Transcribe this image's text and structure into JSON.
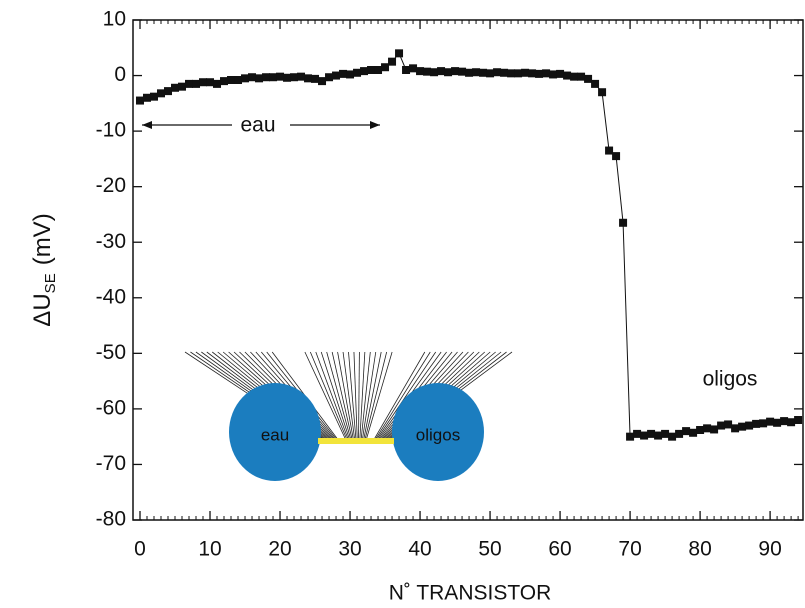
{
  "chart_data": {
    "type": "line",
    "xlabel": "N˚ TRANSISTOR",
    "ylabel": "ΔU",
    "ylabel_subscript": "SE",
    "ylabel_unit": "(mV)",
    "xlim": [
      -1,
      94.7
    ],
    "ylim": [
      -80,
      10
    ],
    "xticks": [
      0,
      10,
      20,
      30,
      40,
      50,
      60,
      70,
      80,
      90
    ],
    "yticks": [
      10,
      0,
      -10,
      -20,
      -30,
      -40,
      -50,
      -60,
      -70,
      -80
    ],
    "color": "#111111",
    "x": [
      0,
      1,
      2,
      3,
      4,
      5,
      6,
      7,
      8,
      9,
      10,
      11,
      12,
      13,
      14,
      15,
      16,
      17,
      18,
      19,
      20,
      21,
      22,
      23,
      24,
      25,
      26,
      27,
      28,
      29,
      30,
      31,
      32,
      33,
      34,
      35,
      36,
      37,
      38,
      39,
      40,
      41,
      42,
      43,
      44,
      45,
      46,
      47,
      48,
      49,
      50,
      51,
      52,
      53,
      54,
      55,
      56,
      57,
      58,
      59,
      60,
      61,
      62,
      63,
      64,
      65,
      66,
      67,
      68,
      69,
      70,
      71,
      72,
      73,
      74,
      75,
      76,
      77,
      78,
      79,
      80,
      81,
      82,
      83,
      84,
      85,
      86,
      87,
      88,
      89,
      90,
      91,
      92,
      93,
      94
    ],
    "values": [
      -4.5,
      -4,
      -3.8,
      -3.2,
      -2.8,
      -2.2,
      -2,
      -1.5,
      -1.5,
      -1.2,
      -1.2,
      -1.5,
      -1,
      -0.8,
      -0.8,
      -0.5,
      -0.3,
      -0.5,
      -0.3,
      -0.3,
      -0.2,
      -0.4,
      -0.3,
      -0.2,
      -0.5,
      -0.6,
      -1,
      -0.3,
      0,
      0.3,
      0.2,
      0.5,
      0.8,
      1,
      1,
      1.5,
      2.5,
      4,
      1,
      1.3,
      0.8,
      0.7,
      0.6,
      0.8,
      0.6,
      0.8,
      0.7,
      0.5,
      0.6,
      0.5,
      0.4,
      0.6,
      0.5,
      0.4,
      0.4,
      0.5,
      0.4,
      0.3,
      0.4,
      0.2,
      0.3,
      0,
      -0.2,
      -0.2,
      -0.6,
      -1.5,
      -3,
      -13.5,
      -14.5,
      -26.5,
      -65,
      -64.5,
      -64.8,
      -64.5,
      -64.8,
      -64.5,
      -65,
      -64.5,
      -64,
      -64.3,
      -63.8,
      -63.5,
      -63.7,
      -63,
      -62.8,
      -63.5,
      -63.2,
      -63,
      -62.7,
      -62.6,
      -62.3,
      -62.5,
      -62.2,
      -62.4,
      -62
    ],
    "annotations": {
      "arrow_label": "eau",
      "region_label": "oligos",
      "inset_left": "eau",
      "inset_right": "oligos"
    }
  }
}
